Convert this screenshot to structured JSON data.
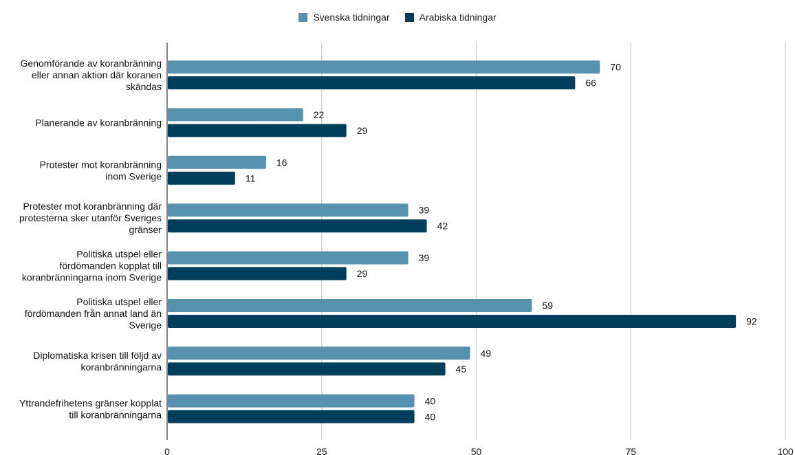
{
  "chart_data": {
    "type": "bar",
    "orientation": "horizontal",
    "categories": [
      [
        "Genomförande av koranbränning",
        "eller annan aktion där koranen",
        "skändas"
      ],
      [
        "Planerande av koranbränning"
      ],
      [
        "Protester mot koranbränning",
        "inom Sverige"
      ],
      [
        "Protester mot koranbränning där",
        "protesterna sker utanför Sveriges",
        "gränser"
      ],
      [
        "Politiska utspel eller",
        "fördömanden kopplat till",
        "koranbränningarna inom Sverige"
      ],
      [
        "Politiska utspel eller",
        "fördömanden från annat land än",
        "Sverige"
      ],
      [
        "Diplomatiska krisen till följd av",
        "koranbränningarna"
      ],
      [
        "Yttrandefrihetens gränser kopplat",
        "till koranbränningarna"
      ]
    ],
    "series": [
      {
        "name": "Svenska tidningar",
        "color": "#5691ad",
        "values": [
          70,
          22,
          16,
          39,
          39,
          59,
          49,
          40
        ]
      },
      {
        "name": "Arabiska tidningar",
        "color": "#003f5c",
        "values": [
          66,
          29,
          11,
          42,
          29,
          92,
          45,
          40
        ]
      }
    ],
    "xlim": [
      0,
      100
    ],
    "xticks": [
      "0",
      "25",
      "50",
      "75",
      "100"
    ],
    "grid": true,
    "legend_position": "top-center"
  }
}
